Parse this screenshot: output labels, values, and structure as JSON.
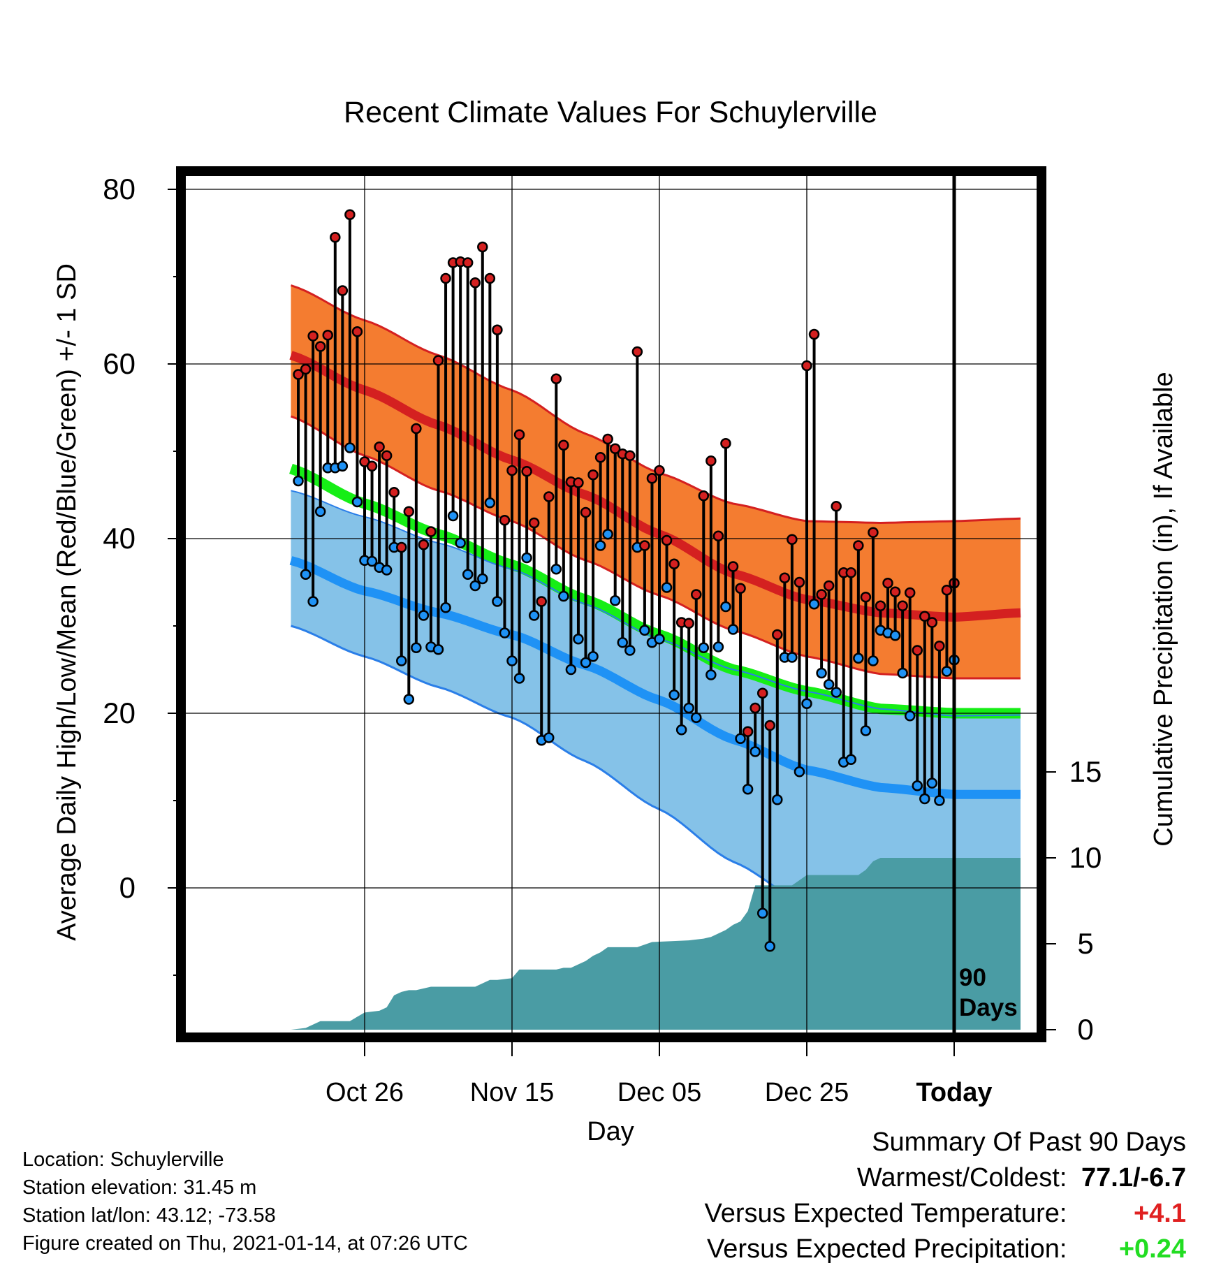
{
  "chart_data": {
    "type": "line",
    "title": "Recent Climate Values For Schuylerville",
    "xlabel": "Day",
    "ylabel": "Average Daily High/Low/Mean (Red/Blue/Green) +/- 1 SD",
    "y2label": "Cumulative Precipitation (in), If Available",
    "x_tick_labels": [
      "Oct 26",
      "Nov 15",
      "Dec 05",
      "Dec 25",
      "Today"
    ],
    "x_tick_days": [
      -80,
      -60,
      -40,
      -20,
      0
    ],
    "y_ticks": [
      "80",
      "60",
      "40",
      "20",
      "0"
    ],
    "y_tick_values": [
      80,
      60,
      40,
      20,
      0
    ],
    "ylim": [
      -16,
      82
    ],
    "y2_ticks": [
      "0",
      "5",
      "10",
      "15"
    ],
    "y2_tick_values": [
      0,
      5,
      10,
      15
    ],
    "y2lim": [
      0,
      45.8
    ],
    "xlim": [
      -90,
      9
    ],
    "today_marker": "90\nDays",
    "normals": {
      "days": [
        -90,
        -80,
        -70,
        -60,
        -50,
        -40,
        -30,
        -20,
        -10,
        0,
        9
      ],
      "high_mean": [
        61,
        57,
        53,
        49,
        45,
        40.5,
        36,
        33,
        31.5,
        31,
        31.5
      ],
      "high_upper": [
        69,
        65,
        61,
        57,
        52,
        47.5,
        44,
        42,
        41.8,
        42,
        42.3
      ],
      "high_lower": [
        54,
        49.5,
        45.5,
        42,
        37.5,
        33.5,
        29.5,
        26.5,
        24.5,
        24,
        24
      ],
      "mean": [
        48,
        44,
        40.5,
        37,
        33,
        29,
        25,
        22.5,
        20.5,
        20,
        20
      ],
      "low_mean": [
        37.5,
        34,
        31.5,
        29,
        25.5,
        21.5,
        17,
        13.5,
        11.5,
        10.7,
        10.7
      ],
      "low_upper": [
        45.5,
        42.5,
        39.5,
        36.5,
        32.5,
        28.5,
        25,
        22.5,
        20.5,
        19.7,
        19.8
      ],
      "low_lower": [
        30,
        26.5,
        23,
        19.5,
        14.5,
        9,
        3,
        -2,
        -4.5,
        -5,
        -5
      ]
    },
    "series": [
      {
        "name": "High",
        "days": [
          -89,
          -88,
          -87,
          -86,
          -85,
          -84,
          -83,
          -82,
          -81,
          -80,
          -79,
          -78,
          -77,
          -76,
          -75,
          -74,
          -73,
          -72,
          -71,
          -70,
          -69,
          -68,
          -67,
          -66,
          -65,
          -64,
          -63,
          -62,
          -61,
          -60,
          -59,
          -58,
          -57,
          -56,
          -55,
          -54,
          -53,
          -52,
          -51,
          -50,
          -49,
          -48,
          -47,
          -46,
          -45,
          -44,
          -43,
          -42,
          -41,
          -40,
          -39,
          -38,
          -37,
          -36,
          -35,
          -34,
          -33,
          -32,
          -31,
          -30,
          -29,
          -28,
          -27,
          -26,
          -25,
          -24,
          -23,
          -22,
          -21,
          -20,
          -19,
          -18,
          -17,
          -16,
          -15,
          -14,
          -13,
          -12,
          -11,
          -10,
          -9,
          -8,
          -7,
          -6,
          -5,
          -4,
          -3,
          -2,
          -1,
          0
        ],
        "values": [
          58.8,
          59.4,
          63.2,
          62,
          63.3,
          74.5,
          68.4,
          77.1,
          63.7,
          48.8,
          48.3,
          50.5,
          49.5,
          45.3,
          39,
          43.1,
          52.6,
          39.3,
          40.8,
          60.4,
          69.8,
          71.6,
          71.7,
          71.6,
          69.3,
          73.4,
          69.8,
          63.9,
          42.1,
          47.8,
          51.9,
          47.7,
          41.8,
          32.8,
          44.8,
          58.3,
          50.7,
          46.5,
          46.4,
          43,
          47.3,
          49.3,
          51.4,
          50.3,
          49.7,
          49.5,
          61.4,
          39.2,
          46.9,
          47.8,
          39.8,
          37.1,
          30.4,
          30.3,
          33.6,
          44.9,
          48.9,
          40.3,
          50.9,
          36.8,
          34.3,
          17.9,
          20.6,
          22.3,
          18.6,
          29,
          35.5,
          39.9,
          35,
          59.8,
          63.4,
          33.6,
          34.6,
          43.7,
          36.1,
          36.1,
          39.2,
          33.3,
          40.7,
          32.3,
          34.9,
          33.9,
          32.3,
          33.8,
          27.2,
          31.1,
          30.4,
          27.7,
          34.1,
          34.9
        ]
      },
      {
        "name": "Low",
        "days": [
          -89,
          -88,
          -87,
          -86,
          -85,
          -84,
          -83,
          -82,
          -81,
          -80,
          -79,
          -78,
          -77,
          -76,
          -75,
          -74,
          -73,
          -72,
          -71,
          -70,
          -69,
          -68,
          -67,
          -66,
          -65,
          -64,
          -63,
          -62,
          -61,
          -60,
          -59,
          -58,
          -57,
          -56,
          -55,
          -54,
          -53,
          -52,
          -51,
          -50,
          -49,
          -48,
          -47,
          -46,
          -45,
          -44,
          -43,
          -42,
          -41,
          -40,
          -39,
          -38,
          -37,
          -36,
          -35,
          -34,
          -33,
          -32,
          -31,
          -30,
          -29,
          -28,
          -27,
          -26,
          -25,
          -24,
          -23,
          -22,
          -21,
          -20,
          -19,
          -18,
          -17,
          -16,
          -15,
          -14,
          -13,
          -12,
          -11,
          -10,
          -9,
          -8,
          -7,
          -6,
          -5,
          -4,
          -3,
          -2,
          -1,
          0
        ],
        "values": [
          46.6,
          35.9,
          32.8,
          43.1,
          48.1,
          48.1,
          48.3,
          50.4,
          44.2,
          37.5,
          37.4,
          36.7,
          36.4,
          39,
          26,
          21.6,
          27.5,
          31.2,
          27.6,
          27.3,
          32.1,
          42.6,
          39.5,
          35.9,
          34.6,
          35.4,
          44.1,
          32.8,
          29.2,
          26,
          24,
          37.8,
          31.2,
          16.9,
          17.2,
          36.5,
          33.4,
          25,
          28.5,
          25.8,
          26.5,
          39.2,
          40.5,
          32.9,
          28.1,
          27.2,
          39,
          29.5,
          28.1,
          28.5,
          34.4,
          22.1,
          18.1,
          20.6,
          19.5,
          27.5,
          24.4,
          27.6,
          32.2,
          29.6,
          17.1,
          11.3,
          15.6,
          -2.9,
          -6.7,
          10.1,
          26.4,
          26.4,
          13.3,
          21.1,
          32.5,
          24.6,
          23.3,
          22.4,
          14.4,
          14.7,
          26.3,
          18,
          26,
          29.5,
          29.2,
          28.9,
          24.6,
          19.7,
          11.7,
          10.2,
          12,
          10,
          24.8,
          26.1
        ]
      }
    ],
    "precipitation": {
      "name": "Cumulative Precipitation",
      "days": [
        -90,
        -88,
        -86,
        -82,
        -80,
        -78,
        -77,
        -76,
        -75,
        -74,
        -73,
        -71,
        -70,
        -66,
        -65,
        -63,
        -62,
        -60,
        -59,
        -57,
        -56,
        -54,
        -53,
        -52,
        -51,
        -50,
        -49,
        -48,
        -47,
        -45,
        -44,
        -43,
        -41,
        -36,
        -34,
        -33,
        -32,
        -31,
        -30,
        -29,
        -28,
        -27,
        -22,
        -21,
        -20,
        -18,
        -16,
        -15,
        -13,
        -12,
        -11,
        -10,
        -9,
        -4,
        0,
        9
      ],
      "values": [
        0,
        0.1,
        0.5,
        0.5,
        1,
        1.1,
        1.3,
        2,
        2.2,
        2.3,
        2.3,
        2.5,
        2.5,
        2.5,
        2.5,
        2.9,
        2.9,
        3,
        3.5,
        3.5,
        3.5,
        3.5,
        3.6,
        3.6,
        3.8,
        4,
        4.3,
        4.5,
        4.8,
        4.8,
        4.8,
        4.8,
        5.1,
        5.2,
        5.3,
        5.4,
        5.6,
        5.8,
        6.1,
        6.3,
        6.9,
        8.4,
        8.4,
        8.7,
        9,
        9,
        9,
        9,
        9,
        9.3,
        9.8,
        10,
        10,
        10,
        10,
        10
      ]
    }
  },
  "info": {
    "location": "Location: Schuylerville",
    "elevation": "Station elevation: 31.45 m",
    "latlon": "Station lat/lon: 43.12; -73.58",
    "created": "Figure created on Thu, 2021-01-14, at 07:26 UTC"
  },
  "summary": {
    "title": "Summary Of Past 90 Days",
    "warmest_coldest_label": "Warmest/Coldest:",
    "warmest_coldest_value": "77.1/-6.7",
    "temp_label": "Versus Expected Temperature:",
    "temp_value": "+4.1",
    "temp_color": "#e02020",
    "precip_label": "Versus Expected Precipitation:",
    "precip_value": "+0.24",
    "precip_color": "#22dd22"
  },
  "colors": {
    "high_band": "#f47c30",
    "high_line": "#d42020",
    "overlap_band": "#9b1010",
    "mean_line": "#16ee16",
    "low_band": "#85c2e8",
    "low_line": "#1f92f5",
    "low_edge": "#2a7ee8",
    "precip_fill": "#4a9ca4",
    "high_dot": "#d42020",
    "low_dot": "#1f92f5"
  }
}
